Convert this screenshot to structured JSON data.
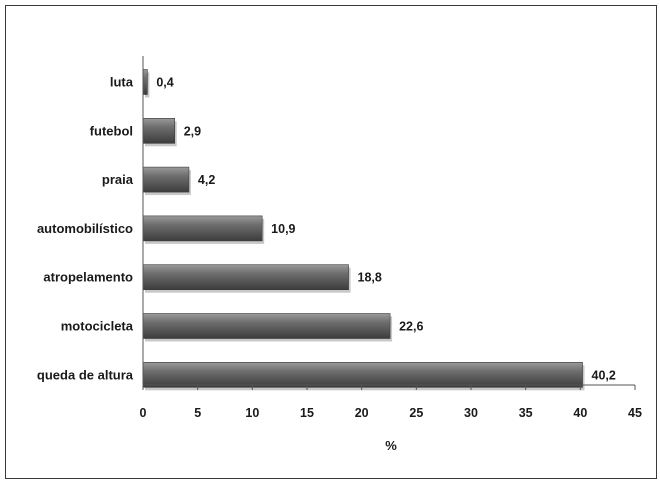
{
  "chart_data": {
    "type": "bar",
    "orientation": "horizontal",
    "categories": [
      "luta",
      "futebol",
      "praia",
      "automobilístico",
      "atropelamento",
      "motocicleta",
      "queda de altura"
    ],
    "values": [
      0.4,
      2.9,
      4.2,
      10.9,
      18.8,
      22.6,
      40.2
    ],
    "value_labels": [
      "0,4",
      "2,9",
      "4,2",
      "10,9",
      "18,8",
      "22,6",
      "40,2"
    ],
    "title": "",
    "xlabel": "%",
    "ylabel": "",
    "xlim": [
      0,
      45
    ],
    "xticks": [
      0,
      5,
      10,
      15,
      20,
      25,
      30,
      35,
      40,
      45
    ],
    "grid": false,
    "legend": "none",
    "bar_color": "#5f5f5f"
  }
}
